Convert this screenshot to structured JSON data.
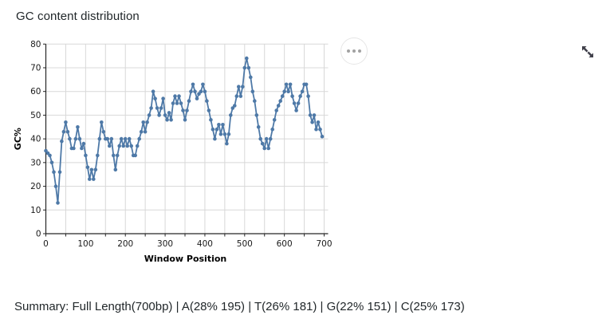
{
  "header": {
    "title": "GC content distribution"
  },
  "icons": {
    "more": "ellipsis-icon",
    "expand": "expand-arrows-icon"
  },
  "chart_data": {
    "type": "line",
    "title": "GC content distribution",
    "xlabel": "Window Position",
    "ylabel": "GC%",
    "xlim": [
      0,
      710
    ],
    "ylim": [
      0,
      80
    ],
    "x_major_ticks": [
      0,
      100,
      200,
      300,
      400,
      500,
      600,
      700
    ],
    "x_minor_tick_step": 50,
    "y_ticks": [
      0,
      10,
      20,
      30,
      40,
      50,
      60,
      70,
      80
    ],
    "grid": true,
    "legend": "none",
    "line_color": "#4e79a7",
    "grid_color": "#d8d8d8",
    "axis_color": "#262626",
    "tick_label_color": "#1a1a1a",
    "marker_radius": 2.3,
    "x": [
      0,
      5,
      10,
      15,
      20,
      25,
      30,
      35,
      40,
      45,
      50,
      55,
      60,
      65,
      70,
      75,
      80,
      85,
      90,
      95,
      100,
      105,
      110,
      115,
      120,
      125,
      130,
      135,
      140,
      145,
      150,
      155,
      160,
      165,
      170,
      175,
      180,
      185,
      190,
      195,
      200,
      205,
      210,
      215,
      220,
      225,
      230,
      235,
      240,
      245,
      250,
      255,
      260,
      265,
      270,
      275,
      280,
      285,
      290,
      295,
      300,
      305,
      310,
      315,
      320,
      325,
      330,
      335,
      340,
      345,
      350,
      355,
      360,
      365,
      370,
      375,
      380,
      385,
      390,
      395,
      400,
      405,
      410,
      415,
      420,
      425,
      430,
      435,
      440,
      445,
      450,
      455,
      460,
      465,
      470,
      475,
      480,
      485,
      490,
      495,
      500,
      505,
      510,
      515,
      520,
      525,
      530,
      535,
      540,
      545,
      550,
      555,
      560,
      565,
      570,
      575,
      580,
      585,
      590,
      595,
      600,
      605,
      610,
      615,
      620,
      625,
      630,
      635,
      640,
      645,
      650,
      655,
      660,
      665,
      670,
      675,
      680,
      685,
      690,
      695
    ],
    "y": [
      35,
      34,
      33,
      30,
      26,
      20,
      13,
      26,
      39,
      43,
      47,
      43,
      40,
      36,
      36,
      40,
      45,
      40,
      36,
      38,
      33,
      28,
      23,
      27,
      23,
      27,
      33,
      40,
      47,
      43,
      40,
      40,
      37,
      40,
      33,
      27,
      33,
      37,
      40,
      37,
      40,
      37,
      40,
      37,
      33,
      33,
      37,
      40,
      43,
      47,
      43,
      47,
      50,
      53,
      60,
      57,
      53,
      50,
      53,
      57,
      50,
      48,
      51,
      48,
      55,
      58,
      55,
      58,
      55,
      52,
      48,
      52,
      56,
      60,
      63,
      60,
      57,
      59,
      60,
      63,
      60,
      56,
      52,
      48,
      44,
      40,
      44,
      46,
      42,
      46,
      42,
      38,
      42,
      50,
      53,
      54,
      58,
      62,
      58,
      62,
      70,
      74,
      70,
      66,
      60,
      56,
      50,
      45,
      40,
      38,
      36,
      40,
      36,
      40,
      44,
      48,
      52,
      54,
      56,
      58,
      60,
      63,
      60,
      63,
      58,
      55,
      52,
      55,
      58,
      60,
      63,
      63,
      58,
      50,
      47,
      50,
      44,
      47,
      44,
      41
    ]
  },
  "summary": {
    "text": "Summary: Full Length(700bp) | A(28% 195) | T(26% 181) | G(22% 151) | C(25% 173)"
  }
}
